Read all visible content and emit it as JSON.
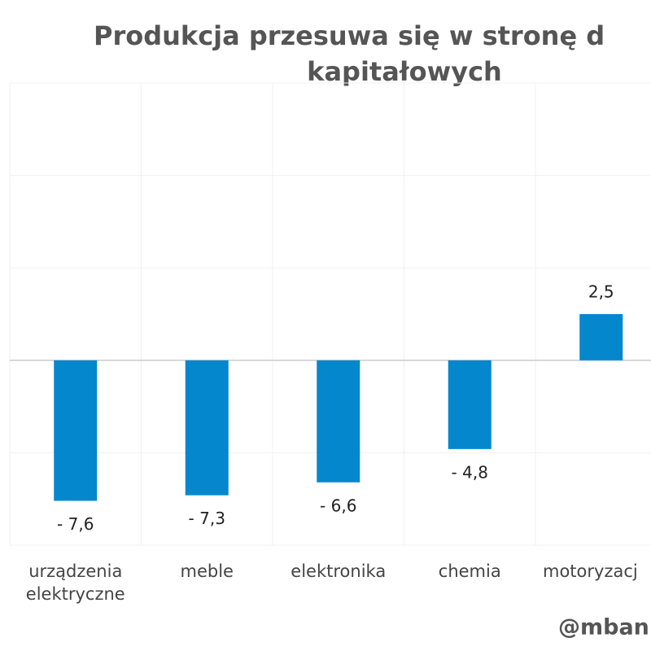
{
  "chart_data": {
    "type": "bar",
    "title": "Produkcja przesuwa się w stronę d",
    "subtitle": "kapitałowych",
    "categories": [
      "urządzenia elektryczne",
      "meble",
      "elektronika",
      "chemia",
      "motoryzacj"
    ],
    "values": [
      -7.6,
      -7.3,
      -6.6,
      -4.8,
      2.5
    ],
    "value_labels": [
      "- 7,6",
      "- 7,3",
      "- 6,6",
      "- 4,8",
      "2,5"
    ],
    "color": "#0587cd",
    "ylim": [
      -10,
      15
    ],
    "yticks": [
      -10,
      -5,
      0,
      5,
      10,
      15
    ],
    "grid": true,
    "annotation": "@mban"
  }
}
